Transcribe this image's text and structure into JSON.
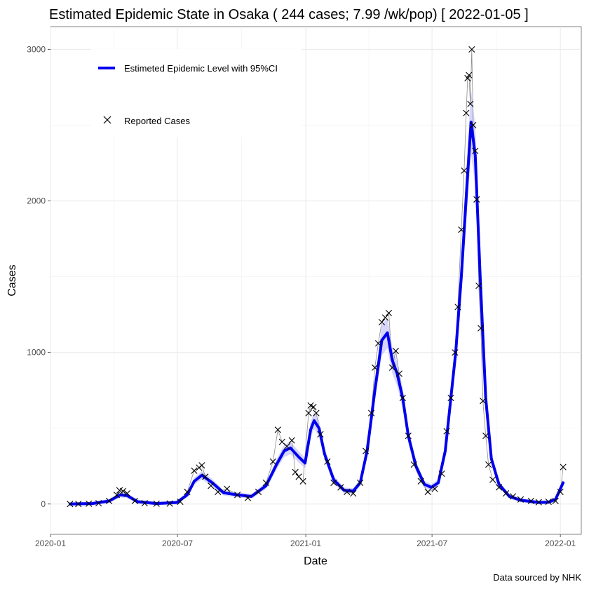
{
  "chart_data": {
    "type": "line",
    "title": "Estimated Epidemic State in Osaka  ( 244 cases; 7.99 /wk/pop) [ 2022-01-05 ]",
    "xlabel": "Date",
    "ylabel": "Cases",
    "caption": "Data sourced by NHK",
    "x_range": [
      "2020-01-01",
      "2022-01-31"
    ],
    "ylim": [
      -200,
      3150
    ],
    "x_ticks": [
      "2020-01-01",
      "2020-07-01",
      "2021-01-01",
      "2021-07-01",
      "2022-01-01"
    ],
    "x_tick_labels": [
      "2020-01",
      "2020-07",
      "2021-01",
      "2021-07",
      "2022-01"
    ],
    "y_ticks": [
      0,
      1000,
      2000,
      3000
    ],
    "y_tick_labels": [
      "0",
      "1000",
      "2000",
      "3000"
    ],
    "grid": true,
    "legend_position": "top-left",
    "legend": [
      {
        "label": "Estimeted Epidemic Level with 95%CI",
        "symbol": "line",
        "color": "#0000ee"
      },
      {
        "label": "Reported Cases",
        "symbol": "x",
        "color": "#000000"
      }
    ],
    "series": [
      {
        "name": "Estimeted Epidemic Level with 95%CI",
        "kind": "line",
        "color": "#0000ee",
        "points": [
          [
            "2020-01-29",
            0
          ],
          [
            "2020-03-01",
            3
          ],
          [
            "2020-03-25",
            20
          ],
          [
            "2020-04-10",
            60
          ],
          [
            "2020-04-20",
            55
          ],
          [
            "2020-05-05",
            15
          ],
          [
            "2020-06-01",
            3
          ],
          [
            "2020-06-30",
            10
          ],
          [
            "2020-07-15",
            60
          ],
          [
            "2020-07-25",
            150
          ],
          [
            "2020-08-05",
            190
          ],
          [
            "2020-08-20",
            140
          ],
          [
            "2020-09-05",
            75
          ],
          [
            "2020-09-25",
            60
          ],
          [
            "2020-10-15",
            50
          ],
          [
            "2020-11-05",
            120
          ],
          [
            "2020-11-20",
            260
          ],
          [
            "2020-12-01",
            350
          ],
          [
            "2020-12-10",
            370
          ],
          [
            "2020-12-22",
            310
          ],
          [
            "2020-12-31",
            270
          ],
          [
            "2021-01-08",
            490
          ],
          [
            "2021-01-13",
            550
          ],
          [
            "2021-01-20",
            500
          ],
          [
            "2021-01-28",
            330
          ],
          [
            "2021-02-10",
            160
          ],
          [
            "2021-02-25",
            90
          ],
          [
            "2021-03-10",
            85
          ],
          [
            "2021-03-20",
            140
          ],
          [
            "2021-03-30",
            350
          ],
          [
            "2021-04-10",
            750
          ],
          [
            "2021-04-20",
            1080
          ],
          [
            "2021-04-28",
            1130
          ],
          [
            "2021-05-05",
            950
          ],
          [
            "2021-05-12",
            860
          ],
          [
            "2021-05-20",
            700
          ],
          [
            "2021-05-28",
            450
          ],
          [
            "2021-06-08",
            250
          ],
          [
            "2021-06-20",
            130
          ],
          [
            "2021-06-30",
            110
          ],
          [
            "2021-07-10",
            140
          ],
          [
            "2021-07-20",
            350
          ],
          [
            "2021-07-28",
            700
          ],
          [
            "2021-08-04",
            1000
          ],
          [
            "2021-08-12",
            1500
          ],
          [
            "2021-08-20",
            2100
          ],
          [
            "2021-08-26",
            2520
          ],
          [
            "2021-09-01",
            2300
          ],
          [
            "2021-09-08",
            1500
          ],
          [
            "2021-09-16",
            700
          ],
          [
            "2021-09-24",
            300
          ],
          [
            "2021-10-05",
            130
          ],
          [
            "2021-10-20",
            50
          ],
          [
            "2021-11-05",
            25
          ],
          [
            "2021-12-01",
            10
          ],
          [
            "2021-12-15",
            12
          ],
          [
            "2021-12-25",
            30
          ],
          [
            "2022-01-05",
            140
          ]
        ]
      },
      {
        "name": "Reported Cases",
        "kind": "x-markers",
        "color": "#000000",
        "points": [
          [
            "2020-01-29",
            0
          ],
          [
            "2020-02-10",
            0
          ],
          [
            "2020-02-25",
            2
          ],
          [
            "2020-03-10",
            5
          ],
          [
            "2020-03-25",
            20
          ],
          [
            "2020-04-05",
            60
          ],
          [
            "2020-04-09",
            90
          ],
          [
            "2020-04-14",
            85
          ],
          [
            "2020-04-20",
            70
          ],
          [
            "2020-05-01",
            20
          ],
          [
            "2020-05-15",
            5
          ],
          [
            "2020-06-01",
            2
          ],
          [
            "2020-06-20",
            3
          ],
          [
            "2020-07-05",
            15
          ],
          [
            "2020-07-15",
            80
          ],
          [
            "2020-07-25",
            220
          ],
          [
            "2020-08-01",
            240
          ],
          [
            "2020-08-05",
            255
          ],
          [
            "2020-08-10",
            180
          ],
          [
            "2020-08-18",
            120
          ],
          [
            "2020-08-28",
            80
          ],
          [
            "2020-09-10",
            100
          ],
          [
            "2020-09-25",
            60
          ],
          [
            "2020-10-10",
            40
          ],
          [
            "2020-10-25",
            80
          ],
          [
            "2020-11-05",
            140
          ],
          [
            "2020-11-15",
            280
          ],
          [
            "2020-11-22",
            490
          ],
          [
            "2020-11-28",
            410
          ],
          [
            "2020-12-05",
            380
          ],
          [
            "2020-12-12",
            420
          ],
          [
            "2020-12-17",
            210
          ],
          [
            "2020-12-22",
            180
          ],
          [
            "2020-12-28",
            150
          ],
          [
            "2021-01-05",
            600
          ],
          [
            "2021-01-08",
            650
          ],
          [
            "2021-01-12",
            640
          ],
          [
            "2021-01-16",
            600
          ],
          [
            "2021-01-22",
            460
          ],
          [
            "2021-02-01",
            280
          ],
          [
            "2021-02-10",
            140
          ],
          [
            "2021-02-20",
            110
          ],
          [
            "2021-03-01",
            80
          ],
          [
            "2021-03-10",
            70
          ],
          [
            "2021-03-20",
            140
          ],
          [
            "2021-03-28",
            350
          ],
          [
            "2021-04-05",
            600
          ],
          [
            "2021-04-10",
            900
          ],
          [
            "2021-04-15",
            1060
          ],
          [
            "2021-04-20",
            1200
          ],
          [
            "2021-04-25",
            1230
          ],
          [
            "2021-04-30",
            1260
          ],
          [
            "2021-05-05",
            900
          ],
          [
            "2021-05-10",
            1010
          ],
          [
            "2021-05-15",
            860
          ],
          [
            "2021-05-20",
            700
          ],
          [
            "2021-05-28",
            450
          ],
          [
            "2021-06-05",
            260
          ],
          [
            "2021-06-15",
            150
          ],
          [
            "2021-06-25",
            80
          ],
          [
            "2021-07-05",
            100
          ],
          [
            "2021-07-15",
            200
          ],
          [
            "2021-07-22",
            480
          ],
          [
            "2021-07-28",
            700
          ],
          [
            "2021-08-03",
            1000
          ],
          [
            "2021-08-07",
            1300
          ],
          [
            "2021-08-12",
            1810
          ],
          [
            "2021-08-16",
            2200
          ],
          [
            "2021-08-19",
            2580
          ],
          [
            "2021-08-21",
            2810
          ],
          [
            "2021-08-23",
            2830
          ],
          [
            "2021-08-25",
            2640
          ],
          [
            "2021-08-27",
            3000
          ],
          [
            "2021-08-29",
            2500
          ],
          [
            "2021-09-01",
            2330
          ],
          [
            "2021-09-03",
            2010
          ],
          [
            "2021-09-06",
            1440
          ],
          [
            "2021-09-09",
            1160
          ],
          [
            "2021-09-12",
            680
          ],
          [
            "2021-09-16",
            450
          ],
          [
            "2021-09-20",
            260
          ],
          [
            "2021-09-26",
            160
          ],
          [
            "2021-10-05",
            110
          ],
          [
            "2021-10-15",
            70
          ],
          [
            "2021-10-25",
            50
          ],
          [
            "2021-11-05",
            30
          ],
          [
            "2021-11-20",
            20
          ],
          [
            "2021-12-01",
            12
          ],
          [
            "2021-12-15",
            15
          ],
          [
            "2021-12-25",
            20
          ],
          [
            "2022-01-01",
            80
          ],
          [
            "2022-01-05",
            244
          ]
        ]
      }
    ]
  }
}
